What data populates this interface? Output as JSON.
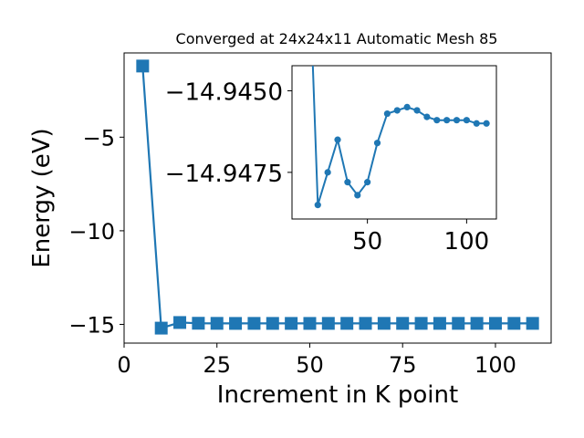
{
  "chart_data": {
    "type": "line",
    "title": "Converged at 24x24x11 Automatic Mesh 85",
    "xlabel": "Increment in K point",
    "ylabel": "Energy (eV)",
    "xlim": [
      0,
      115
    ],
    "ylim": [
      -16.0,
      -0.5
    ],
    "x_ticks": [
      0,
      25,
      50,
      75,
      100
    ],
    "y_ticks": [
      -15,
      -10,
      -5
    ],
    "x_tick_labels": [
      "0",
      "25",
      "50",
      "75",
      "100"
    ],
    "y_tick_labels": [
      "−15",
      "−10",
      "−5"
    ],
    "grid": false,
    "series_color": "#1f77b4",
    "marker": "square",
    "x": [
      5,
      10,
      15,
      20,
      25,
      30,
      35,
      40,
      45,
      50,
      55,
      60,
      65,
      70,
      75,
      80,
      85,
      90,
      95,
      100,
      105,
      110
    ],
    "y": [
      -1.2,
      -15.2,
      -14.9,
      -14.94,
      -14.945,
      -14.9485,
      -14.9465,
      -14.9475,
      -14.9478,
      -14.9482,
      -14.9466,
      -14.9457,
      -14.9456,
      -14.9455,
      -14.9456,
      -14.9458,
      -14.9459,
      -14.9459,
      -14.9459,
      -14.9459,
      -14.946,
      -14.946
    ],
    "inset": {
      "type": "line",
      "marker": "circle",
      "xlim": [
        12,
        115
      ],
      "ylim": [
        -14.94423,
        -14.94893
      ],
      "x_ticks": [
        50,
        100
      ],
      "y_ticks": [
        -14.9475,
        -14.945
      ],
      "x_tick_labels": [
        "50",
        "100"
      ],
      "y_tick_labels": [
        "−14.9475",
        "−14.9450"
      ],
      "x": [
        20,
        25,
        30,
        35,
        40,
        45,
        50,
        55,
        60,
        65,
        70,
        75,
        80,
        85,
        90,
        95,
        100,
        105,
        110
      ],
      "y": [
        -14.94,
        -14.9485,
        -14.9475,
        -14.9465,
        -14.9478,
        -14.9482,
        -14.9478,
        -14.9466,
        -14.9457,
        -14.9456,
        -14.9455,
        -14.9456,
        -14.9458,
        -14.9459,
        -14.9459,
        -14.9459,
        -14.9459,
        -14.946,
        -14.946
      ]
    }
  }
}
